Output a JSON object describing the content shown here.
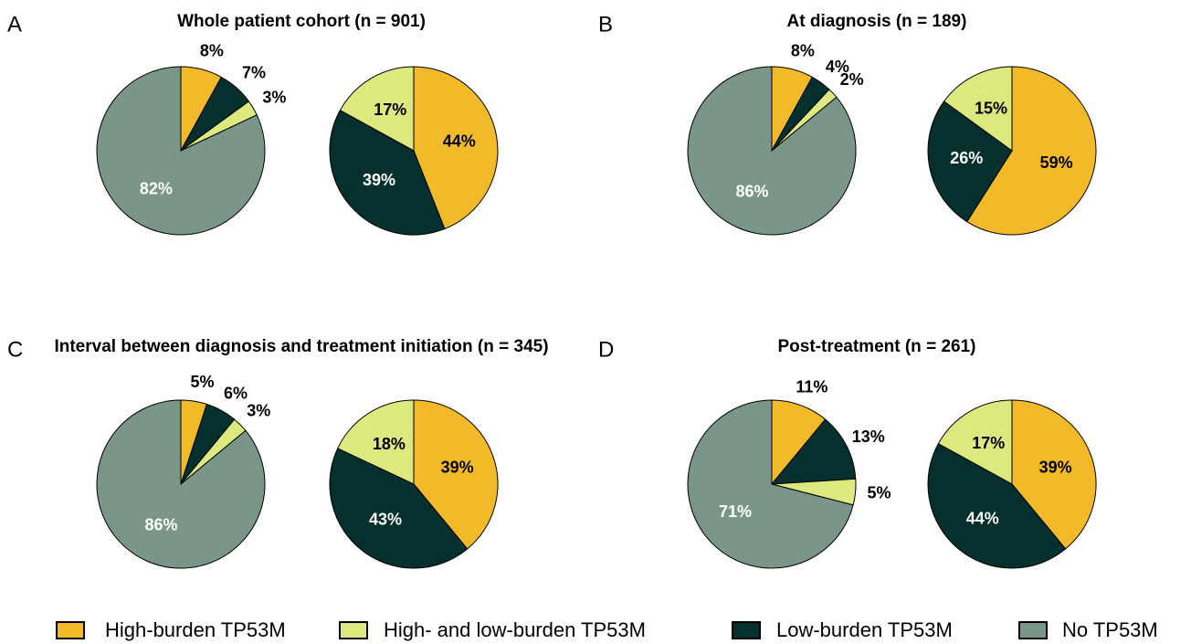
{
  "chart_data": [
    {
      "type": "pie",
      "label": "A",
      "title": "Whole patient cohort (n = 901)",
      "pies": [
        {
          "values": [
            8,
            7,
            3,
            82
          ],
          "value_labels": [
            "8%",
            "7%",
            "3%",
            "82%"
          ],
          "colors": [
            "#f2b928",
            "#06302e",
            "#dde87f",
            "#7a9688"
          ]
        },
        {
          "values": [
            44,
            39,
            17
          ],
          "value_labels": [
            "44%",
            "39%",
            "17%"
          ],
          "colors": [
            "#f2b928",
            "#06302e",
            "#dde87f"
          ]
        }
      ]
    },
    {
      "type": "pie",
      "label": "B",
      "title": "At diagnosis (n = 189)",
      "pies": [
        {
          "values": [
            8,
            4,
            2,
            86
          ],
          "value_labels": [
            "8%",
            "4%",
            "2%",
            "86%"
          ],
          "colors": [
            "#f2b928",
            "#06302e",
            "#dde87f",
            "#7a9688"
          ]
        },
        {
          "values": [
            59,
            26,
            15
          ],
          "value_labels": [
            "59%",
            "26%",
            "15%"
          ],
          "colors": [
            "#f2b928",
            "#06302e",
            "#dde87f"
          ]
        }
      ]
    },
    {
      "type": "pie",
      "label": "C",
      "title": "Interval between diagnosis and treatment initiation (n = 345)",
      "pies": [
        {
          "values": [
            5,
            6,
            3,
            86
          ],
          "value_labels": [
            "5%",
            "6%",
            "3%",
            "86%"
          ],
          "colors": [
            "#f2b928",
            "#06302e",
            "#dde87f",
            "#7a9688"
          ]
        },
        {
          "values": [
            39,
            43,
            18
          ],
          "value_labels": [
            "39%",
            "43%",
            "18%"
          ],
          "colors": [
            "#f2b928",
            "#06302e",
            "#dde87f"
          ]
        }
      ]
    },
    {
      "type": "pie",
      "label": "D",
      "title": "Post-treatment (n = 261)",
      "pies": [
        {
          "values": [
            11,
            13,
            5,
            71
          ],
          "value_labels": [
            "11%",
            "13%",
            "5%",
            "71%"
          ],
          "colors": [
            "#f2b928",
            "#06302e",
            "#dde87f",
            "#7a9688"
          ]
        },
        {
          "values": [
            39,
            44,
            17
          ],
          "value_labels": [
            "39%",
            "44%",
            "17%"
          ],
          "colors": [
            "#f2b928",
            "#06302e",
            "#dde87f"
          ]
        }
      ]
    }
  ],
  "legend": [
    {
      "name": "High-burden TP53M",
      "color": "#f2b928"
    },
    {
      "name": "High- and low-burden TP53M",
      "color": "#dde87f"
    },
    {
      "name": "Low-burden TP53M",
      "color": "#06302e"
    },
    {
      "name": "No TP53M",
      "color": "#7a9688"
    }
  ]
}
